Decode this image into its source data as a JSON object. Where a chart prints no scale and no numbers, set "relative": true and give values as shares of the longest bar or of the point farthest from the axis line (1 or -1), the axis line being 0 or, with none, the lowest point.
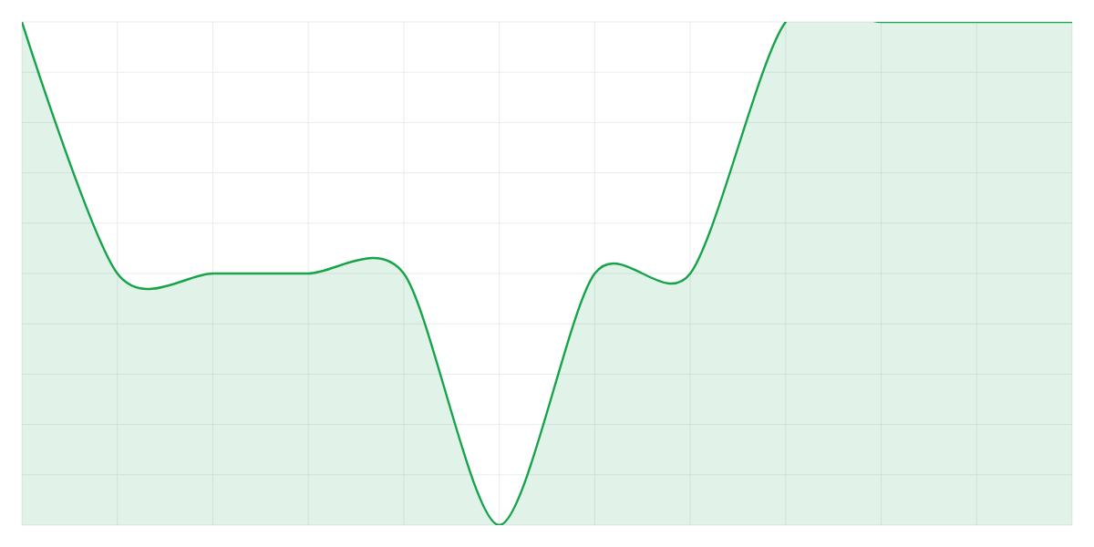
{
  "chart_data": {
    "type": "area",
    "relative": true,
    "grid": true,
    "color": "#16a34a",
    "categories": [
      null,
      null,
      null,
      null,
      null,
      null,
      null,
      null,
      null,
      null,
      null,
      null
    ],
    "values": [
      1,
      0.5,
      0.5,
      0.5,
      0.5,
      0,
      0.5,
      0.5,
      1,
      1,
      1,
      1
    ]
  }
}
